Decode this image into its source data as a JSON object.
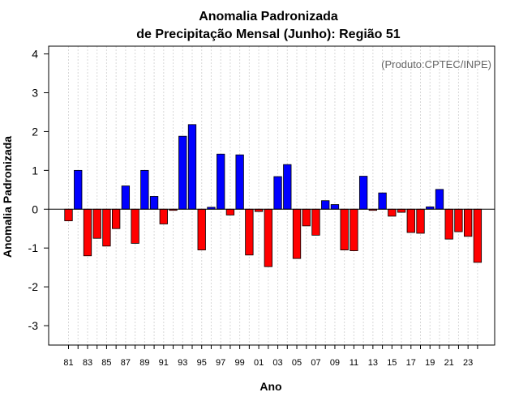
{
  "chart_data": {
    "type": "bar",
    "title": "Anomalia Padronizada",
    "subtitle": "de Precipitação Mensal (Junho): Região 51",
    "xlabel": "Ano",
    "ylabel": "Anomalia Padronizada",
    "annotation": "(Produto:CPTEC/INPE)",
    "ylim": [
      -3.5,
      4.2
    ],
    "yticks": [
      -3,
      -2,
      -1,
      0,
      1,
      2,
      3,
      4
    ],
    "grid": true,
    "positive_color": "#0000ff",
    "negative_color": "#ff0000",
    "categories": [
      "81",
      "82",
      "83",
      "84",
      "85",
      "86",
      "87",
      "88",
      "89",
      "90",
      "91",
      "92",
      "93",
      "94",
      "95",
      "96",
      "97",
      "98",
      "99",
      "00",
      "01",
      "02",
      "03",
      "04",
      "05",
      "06",
      "07",
      "08",
      "09",
      "10",
      "11",
      "12",
      "13",
      "14",
      "15",
      "16",
      "17",
      "18",
      "19",
      "20",
      "21",
      "22",
      "23",
      "24"
    ],
    "xtick_labels": [
      "81",
      "83",
      "85",
      "87",
      "89",
      "91",
      "93",
      "95",
      "97",
      "99",
      "01",
      "03",
      "05",
      "07",
      "09",
      "11",
      "13",
      "15",
      "17",
      "19",
      "21",
      "23"
    ],
    "values": [
      -0.3,
      1.0,
      -1.2,
      -0.75,
      -0.95,
      -0.5,
      0.6,
      -0.88,
      1.0,
      0.33,
      -0.38,
      -0.03,
      1.88,
      2.18,
      -1.05,
      0.05,
      1.42,
      -0.15,
      1.4,
      -1.18,
      -0.06,
      -1.48,
      0.84,
      1.15,
      -1.27,
      -0.43,
      -0.67,
      0.22,
      0.12,
      -1.05,
      -1.07,
      0.85,
      -0.03,
      0.42,
      -0.18,
      -0.08,
      -0.6,
      -0.62,
      0.06,
      0.51,
      -0.77,
      -0.58,
      -0.7,
      -1.37
    ]
  }
}
